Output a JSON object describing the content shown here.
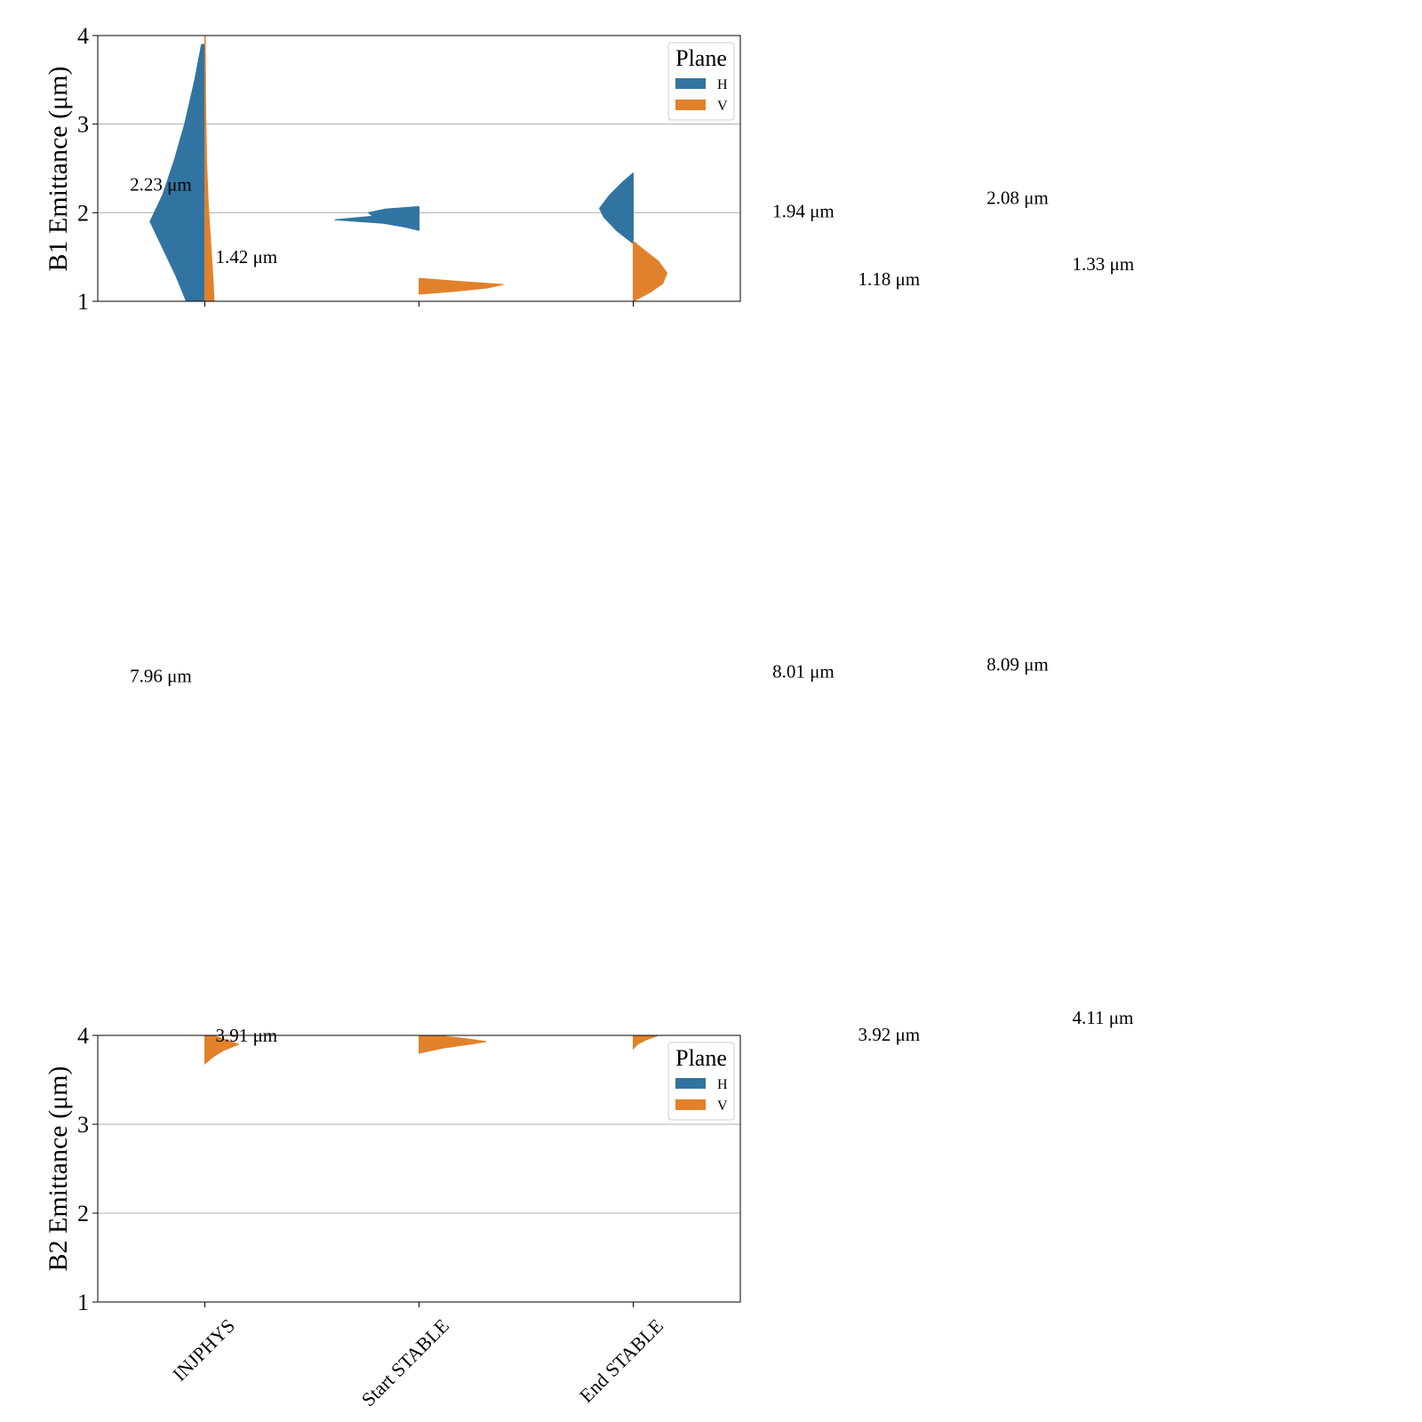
{
  "chart_data": [
    {
      "type": "violin",
      "panel": "B1",
      "xlabel": "",
      "ylabel": "B1 Emittance (μm)",
      "ylim": [
        1,
        4
      ],
      "yticks": [
        1,
        2,
        3,
        4
      ],
      "grid": true,
      "categories": [
        "INJPHYS",
        "Start STABLE",
        "End STABLE"
      ],
      "legend": {
        "title": "Plane",
        "position": "top-right",
        "entries": [
          "H",
          "V"
        ]
      },
      "series": [
        {
          "name": "H",
          "color": "#3274a1",
          "violins": [
            {
              "category": "INJPHYS",
              "profile": [
                [
                  1.0,
                  0.22
                ],
                [
                  1.3,
                  0.35
                ],
                [
                  1.6,
                  0.5
                ],
                [
                  1.9,
                  0.65
                ],
                [
                  2.2,
                  0.5
                ],
                [
                  2.6,
                  0.36
                ],
                [
                  3.0,
                  0.24
                ],
                [
                  3.5,
                  0.12
                ],
                [
                  3.9,
                  0.04
                ]
              ]
            },
            {
              "category": "Start STABLE",
              "profile": [
                [
                  1.8,
                  0.0
                ],
                [
                  1.84,
                  0.18
                ],
                [
                  1.88,
                  0.42
                ],
                [
                  1.92,
                  1.0
                ],
                [
                  1.96,
                  0.55
                ],
                [
                  2.0,
                  0.6
                ],
                [
                  2.04,
                  0.4
                ],
                [
                  2.07,
                  0.0
                ]
              ]
            },
            {
              "category": "End STABLE",
              "profile": [
                [
                  1.65,
                  0.0
                ],
                [
                  1.8,
                  0.2
                ],
                [
                  1.95,
                  0.35
                ],
                [
                  2.05,
                  0.4
                ],
                [
                  2.2,
                  0.28
                ],
                [
                  2.35,
                  0.12
                ],
                [
                  2.45,
                  0.0
                ]
              ]
            }
          ]
        },
        {
          "name": "V",
          "color": "#e1812c",
          "violins": [
            {
              "category": "INJPHYS",
              "profile": [
                [
                  1.0,
                  0.11
                ],
                [
                  1.2,
                  0.1
                ],
                [
                  1.5,
                  0.08
                ],
                [
                  1.8,
                  0.06
                ],
                [
                  2.1,
                  0.04
                ],
                [
                  2.6,
                  0.02
                ],
                [
                  3.2,
                  0.01
                ],
                [
                  4.0,
                  0.005
                ]
              ]
            },
            {
              "category": "Start STABLE",
              "profile": [
                [
                  1.08,
                  0.0
                ],
                [
                  1.11,
                  0.4
                ],
                [
                  1.15,
                  0.8
                ],
                [
                  1.19,
                  1.0
                ],
                [
                  1.23,
                  0.4
                ],
                [
                  1.26,
                  0.0
                ]
              ]
            },
            {
              "category": "End STABLE",
              "profile": [
                [
                  1.0,
                  0.0
                ],
                [
                  1.1,
                  0.2
                ],
                [
                  1.2,
                  0.35
                ],
                [
                  1.32,
                  0.4
                ],
                [
                  1.45,
                  0.3
                ],
                [
                  1.6,
                  0.1
                ],
                [
                  1.68,
                  0.0
                ]
              ]
            }
          ]
        }
      ],
      "annotations": [
        {
          "text": "2.23 μm",
          "x": -0.35,
          "y": 2.25
        },
        {
          "text": "1.42 μm",
          "x": 0.05,
          "y": 1.43
        },
        {
          "text": "1.94 μm",
          "x": 2.65,
          "y": 1.95
        },
        {
          "text": "1.18 μm",
          "x": 3.05,
          "y": 1.18
        },
        {
          "text": "2.08 μm",
          "x": 3.65,
          "y": 2.1
        },
        {
          "text": "1.33 μm",
          "x": 4.05,
          "y": 1.35
        },
        {
          "text": "7.96 μm",
          "x": -0.35,
          "y": -3.3
        },
        {
          "text": "8.01 μm",
          "x": 2.65,
          "y": -3.25
        },
        {
          "text": "8.09 μm",
          "x": 3.65,
          "y": -3.17
        }
      ]
    },
    {
      "type": "violin",
      "panel": "B2",
      "xlabel": "",
      "ylabel": "B2 Emittance (μm)",
      "ylim": [
        1,
        4
      ],
      "yticks": [
        1,
        2,
        3,
        4
      ],
      "grid": true,
      "categories": [
        "INJPHYS",
        "Start STABLE",
        "End STABLE"
      ],
      "legend": {
        "title": "Plane",
        "position": "top-right",
        "entries": [
          "H",
          "V"
        ]
      },
      "series": [
        {
          "name": "H",
          "color": "#3274a1",
          "violins": []
        },
        {
          "name": "V",
          "color": "#e1812c",
          "violins": [
            {
              "category": "INJPHYS",
              "profile": [
                [
                  3.68,
                  0.0
                ],
                [
                  3.76,
                  0.1
                ],
                [
                  3.83,
                  0.22
                ],
                [
                  3.9,
                  0.4
                ],
                [
                  3.95,
                  0.25
                ],
                [
                  4.0,
                  0.1
                ]
              ]
            },
            {
              "category": "Start STABLE",
              "profile": [
                [
                  3.8,
                  0.0
                ],
                [
                  3.86,
                  0.3
                ],
                [
                  3.9,
                  0.6
                ],
                [
                  3.93,
                  0.8
                ],
                [
                  3.97,
                  0.5
                ],
                [
                  4.0,
                  0.2
                ]
              ]
            },
            {
              "category": "End STABLE",
              "profile": [
                [
                  3.85,
                  0.0
                ],
                [
                  3.9,
                  0.05
                ],
                [
                  3.95,
                  0.15
                ],
                [
                  4.0,
                  0.3
                ]
              ]
            }
          ]
        }
      ],
      "annotations": [
        {
          "text": "3.91 μm",
          "x": 0.05,
          "y": 3.93
        },
        {
          "text": "3.92 μm",
          "x": 3.05,
          "y": 3.94
        },
        {
          "text": "4.11 μm",
          "x": 4.05,
          "y": 4.13
        }
      ]
    }
  ]
}
